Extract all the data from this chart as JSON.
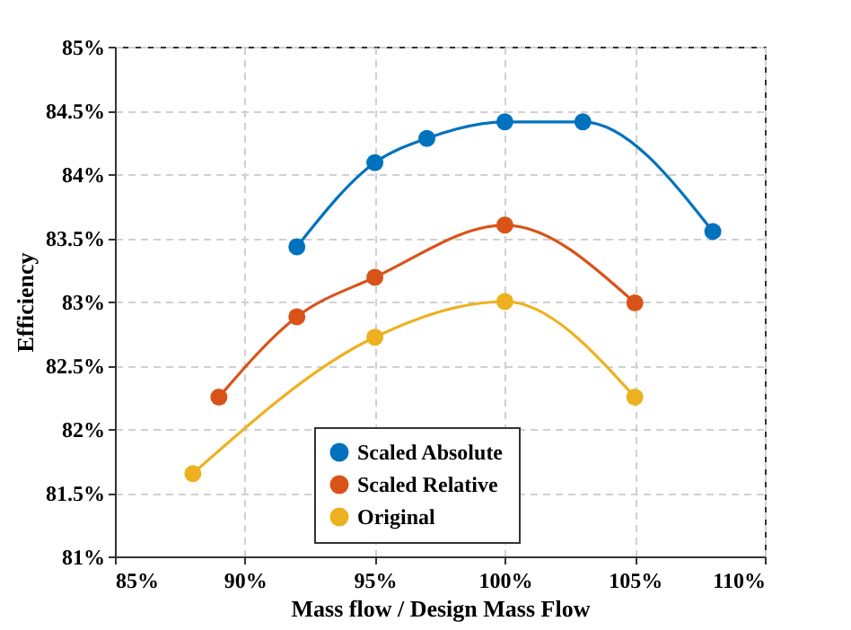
{
  "chart_data": {
    "type": "line",
    "xlabel": "Mass flow / Design Mass Flow",
    "ylabel": "Efficiency",
    "xlim": [
      85,
      110
    ],
    "xticks": [
      {
        "value": 85,
        "label": "85%"
      },
      {
        "value": 90,
        "label": "90%"
      },
      {
        "value": 95,
        "label": "95%"
      },
      {
        "value": 100,
        "label": "100%"
      },
      {
        "value": 105,
        "label": "105%"
      },
      {
        "value": 110,
        "label": "110%"
      }
    ],
    "ylim": [
      81,
      85
    ],
    "yticks": [
      {
        "value": 81,
        "label": "81%"
      },
      {
        "value": 81.5,
        "label": "81.5%"
      },
      {
        "value": 82,
        "label": "82%"
      },
      {
        "value": 82.5,
        "label": "82.5%"
      },
      {
        "value": 83,
        "label": "83%"
      },
      {
        "value": 83.5,
        "label": "83.5%"
      },
      {
        "value": 84,
        "label": "84%"
      },
      {
        "value": 84.5,
        "label": "84.5%"
      },
      {
        "value": 85,
        "label": "85%"
      }
    ],
    "grid": true,
    "legend": "bottom",
    "marker": "circle",
    "line_style": "solid",
    "series": [
      {
        "name": "Scaled Absolute",
        "color": "#0072bd",
        "x": [
          92,
          95,
          97,
          100,
          103,
          108
        ],
        "values": [
          83.43,
          84.09,
          84.28,
          84.41,
          84.41,
          83.55
        ]
      },
      {
        "name": "Scaled Relative",
        "color": "#d95319",
        "x": [
          89,
          92,
          95,
          100,
          105
        ],
        "values": [
          82.25,
          82.88,
          83.19,
          83.6,
          82.99
        ]
      },
      {
        "name": "Original",
        "color": "#edb120",
        "x": [
          88,
          95,
          100,
          105
        ],
        "values": [
          81.65,
          82.72,
          83.0,
          82.25
        ]
      }
    ]
  }
}
